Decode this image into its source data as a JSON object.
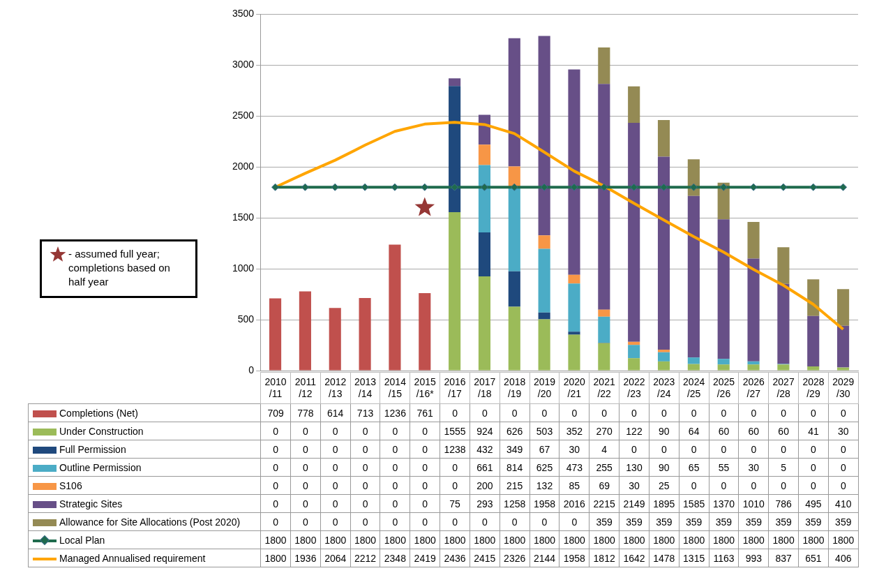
{
  "chart_data": {
    "type": "bar",
    "stacked": true,
    "data_labels": true,
    "legend": "left",
    "grid": "y",
    "ylim": [
      0,
      3500
    ],
    "yticks": [
      0,
      500,
      1000,
      1500,
      2000,
      2500,
      3000,
      3500
    ],
    "categories": [
      "2010/11",
      "2011/12",
      "2012/13",
      "2013/14",
      "2014/15",
      "2015/16*",
      "2016/17",
      "2017/18",
      "2018/19",
      "2019/20",
      "2020/21",
      "2021/22",
      "2022/23",
      "2023/24",
      "2024/25",
      "2025/26",
      "2026/27",
      "2027/28",
      "2028/29",
      "2029/30"
    ],
    "series": [
      {
        "name": "Completions (Net)",
        "color": "#c0504d",
        "values": [
          709,
          778,
          614,
          713,
          1236,
          761,
          0,
          0,
          0,
          0,
          0,
          0,
          0,
          0,
          0,
          0,
          0,
          0,
          0,
          0
        ]
      },
      {
        "name": "Under Construction",
        "color": "#9bbb59",
        "values": [
          0,
          0,
          0,
          0,
          0,
          0,
          1555,
          924,
          626,
          503,
          352,
          270,
          122,
          90,
          64,
          60,
          60,
          60,
          41,
          30
        ]
      },
      {
        "name": "Full Permission",
        "color": "#1f497d",
        "values": [
          0,
          0,
          0,
          0,
          0,
          0,
          1238,
          432,
          349,
          67,
          30,
          4,
          0,
          0,
          0,
          0,
          0,
          0,
          0,
          0
        ]
      },
      {
        "name": "Outline Permission",
        "color": "#4bacc6",
        "values": [
          0,
          0,
          0,
          0,
          0,
          0,
          0,
          661,
          814,
          625,
          473,
          255,
          130,
          90,
          65,
          55,
          30,
          5,
          0,
          0
        ]
      },
      {
        "name": "S106",
        "color": "#f79646",
        "values": [
          0,
          0,
          0,
          0,
          0,
          0,
          0,
          200,
          215,
          132,
          85,
          69,
          30,
          25,
          0,
          0,
          0,
          0,
          0,
          0
        ]
      },
      {
        "name": "Strategic Sites",
        "color": "#674f87",
        "values": [
          0,
          0,
          0,
          0,
          0,
          0,
          75,
          293,
          1258,
          1958,
          2016,
          2215,
          2149,
          1895,
          1585,
          1370,
          1010,
          786,
          495,
          410
        ]
      },
      {
        "name": "Allowance for Site Allocations (Post 2020)",
        "color": "#948a54",
        "values": [
          0,
          0,
          0,
          0,
          0,
          0,
          0,
          0,
          0,
          0,
          0,
          359,
          359,
          359,
          359,
          359,
          359,
          359,
          359,
          359
        ]
      },
      {
        "name": "Local Plan",
        "type": "line",
        "marker": "diamond",
        "color": "#1f6b4d",
        "values": [
          1800,
          1800,
          1800,
          1800,
          1800,
          1800,
          1800,
          1800,
          1800,
          1800,
          1800,
          1800,
          1800,
          1800,
          1800,
          1800,
          1800,
          1800,
          1800,
          1800
        ]
      },
      {
        "name": "Managed Annualised requirement",
        "type": "line",
        "marker": "none",
        "color": "#ffa500",
        "values": [
          1800,
          1936,
          2064,
          2212,
          2348,
          2419,
          2436,
          2415,
          2326,
          2144,
          1958,
          1812,
          1642,
          1478,
          1315,
          1163,
          993,
          837,
          651,
          406
        ]
      },
      {
        "name": "- assumed full year; completions based on half year",
        "type": "scatter",
        "marker": "star",
        "color": "#953735",
        "values": [
          null,
          null,
          null,
          null,
          null,
          1600,
          null,
          null,
          null,
          null,
          null,
          null,
          null,
          null,
          null,
          null,
          null,
          null,
          null,
          null
        ],
        "value_labels": [
          null,
          null,
          null,
          null,
          null,
          null,
          null,
          null,
          null,
          null,
          null,
          null,
          null,
          null,
          null,
          null,
          null,
          null,
          null,
          null
        ]
      }
    ]
  }
}
